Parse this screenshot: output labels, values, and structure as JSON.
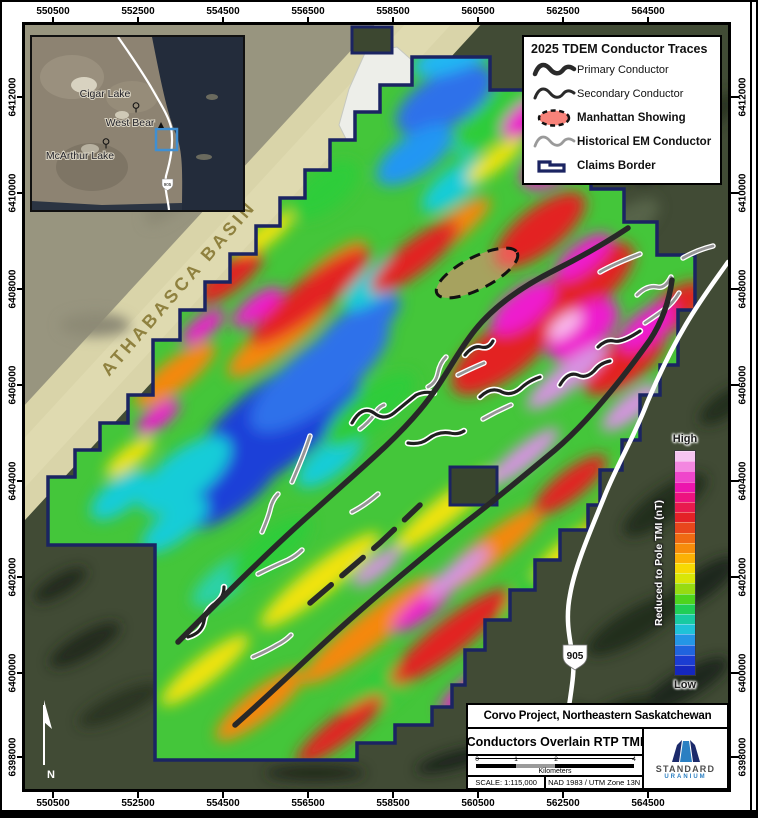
{
  "axes": {
    "x": [
      "550500",
      "552500",
      "554500",
      "556500",
      "558500",
      "560500",
      "562500",
      "564500"
    ],
    "y": [
      "6412000",
      "6410000",
      "6408000",
      "6406000",
      "6404000",
      "6402000",
      "6400000",
      "6398000"
    ]
  },
  "legend": {
    "title": "2025 TDEM Conductor Traces",
    "items": [
      {
        "label": "Primary Conductor"
      },
      {
        "label": "Secondary Conductor"
      },
      {
        "label": "Manhattan Showing"
      },
      {
        "label": "Historical EM Conductor"
      },
      {
        "label": "Claims Border"
      }
    ]
  },
  "inset": {
    "cigar_lake": "Cigar Lake",
    "west_bear": "West Bear",
    "mcarthur_lake": "McArthur Lake",
    "road_shield": "905"
  },
  "map": {
    "basin_label": "ATHABASCA BASIN",
    "road_shield": "905",
    "north_label": "N"
  },
  "colorbar": {
    "high": "High",
    "low": "Low",
    "label": "Reduced to Pole TMI (nT)",
    "colors": [
      "#f6c4f1",
      "#f387e0",
      "#ef46cb",
      "#ec16ae",
      "#ed1380",
      "#e81a4e",
      "#e32127",
      "#e8461c",
      "#ef6a13",
      "#f68c0b",
      "#fbb105",
      "#f7d903",
      "#d9e607",
      "#97db11",
      "#4ed41d",
      "#20ce56",
      "#18caa2",
      "#1fc2d8",
      "#2496e6",
      "#2064de",
      "#1b3dd2",
      "#1527be"
    ]
  },
  "title_block": {
    "title": "Corvo Project, Northeastern Saskatchewan",
    "subtitle": "Conductors Overlain RTP TMI",
    "scale_ticks": [
      "0",
      "1",
      "2",
      "4"
    ],
    "scale_unit": "Kilometers",
    "scale_label": "SCALE: 1:115,000",
    "datum_label": "NAD 1983 / UTM Zone 13N",
    "logo_name": "STANDARD",
    "logo_sub": "URANIUM"
  },
  "colors": {
    "claims_border": "#1b2462",
    "primary_conductor": "#282828",
    "secondary_conductor": "#1f1f1f",
    "historical_conductor": "#969696",
    "manhattan_fill": "#f8837a",
    "road": "#ffffff",
    "inset_locator": "#3f8fd2",
    "basin_text": "#8f813f",
    "logo_blue": "#2b7fc2",
    "logo_navy": "#1b2a6b"
  }
}
